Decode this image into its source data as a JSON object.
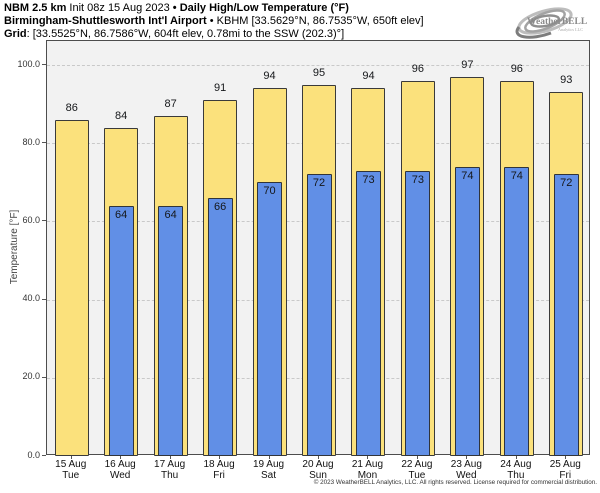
{
  "header": {
    "model": "NBM 2.5 km",
    "init": "Init 08z 15 Aug 2023",
    "sep": "•",
    "product": "Daily High/Low Temperature (°F)",
    "station_name": "Birmingham-Shuttlesworth Int'l Airport",
    "station_info": "KBHM [33.5629°N, 86.7535°W, 650ft elev]",
    "grid_label": "Grid",
    "grid_info": ": [33.5525°N, 86.7586°W, 604ft elev, 0.78mi to the SSW (202.3)°]"
  },
  "logo": {
    "text": "WeatherBELL",
    "subtext": "Analytics LLC"
  },
  "chart_data": {
    "type": "bar",
    "title": "NBM 2.5 km Init 08z 15 Aug 2023 • Daily High/Low Temperature (°F)",
    "ylabel": "Temperature [°F]",
    "ylim": [
      0,
      106
    ],
    "yticks": [
      0,
      20,
      40,
      60,
      80,
      100
    ],
    "ytick_labels": [
      "0.0",
      "20.0",
      "40.0",
      "60.0",
      "80.0",
      "100.0"
    ],
    "grid": "horizontal dashed",
    "legend": "none",
    "categories": [
      {
        "date": "15 Aug",
        "day": "Tue"
      },
      {
        "date": "16 Aug",
        "day": "Wed"
      },
      {
        "date": "17 Aug",
        "day": "Thu"
      },
      {
        "date": "18 Aug",
        "day": "Fri"
      },
      {
        "date": "19 Aug",
        "day": "Sat"
      },
      {
        "date": "20 Aug",
        "day": "Sun"
      },
      {
        "date": "21 Aug",
        "day": "Mon"
      },
      {
        "date": "22 Aug",
        "day": "Tue"
      },
      {
        "date": "23 Aug",
        "day": "Wed"
      },
      {
        "date": "24 Aug",
        "day": "Thu"
      },
      {
        "date": "25 Aug",
        "day": "Fri"
      }
    ],
    "series": [
      {
        "name": "Daily High",
        "color": "#FBE17C",
        "values": [
          86,
          84,
          87,
          91,
          94,
          95,
          94,
          96,
          97,
          96,
          93
        ]
      },
      {
        "name": "Daily Low",
        "color": "#618FE6",
        "values": [
          null,
          64,
          64,
          66,
          70,
          72,
          73,
          73,
          74,
          74,
          72
        ]
      }
    ]
  },
  "colors": {
    "plot_background": "#f2f2f2",
    "bar_edge": "#3a3a3a",
    "gridline": "#c9c9c9",
    "axis_box": "#4d4d4d"
  },
  "footer": {
    "copyright": "© 2023 WeatherBELL Analytics, LLC. All rights reserved. License required for commercial distribution."
  }
}
